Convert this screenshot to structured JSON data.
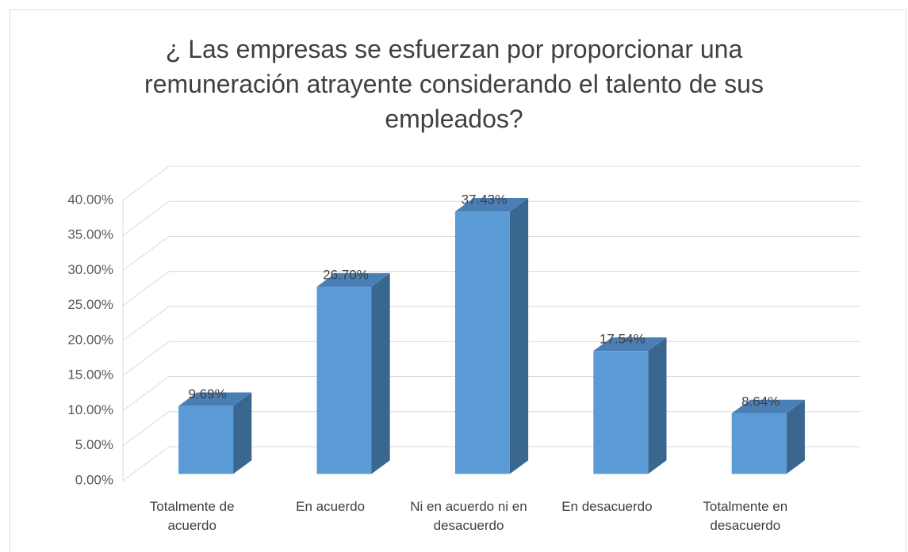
{
  "chart_data": {
    "type": "bar3d",
    "title": "¿ Las empresas se esfuerzan por proporcionar una remuneración atrayente considerando el talento de sus empleados?",
    "categories": [
      "Totalmente de acuerdo",
      "En acuerdo",
      "Ni en acuerdo ni en desacuerdo",
      "En desacuerdo",
      "Totalmente en desacuerdo"
    ],
    "values": [
      9.69,
      26.7,
      37.43,
      17.54,
      8.64
    ],
    "value_labels": [
      "9.69%",
      "26.70%",
      "37.43%",
      "17.54%",
      "8.64%"
    ],
    "color": "#5b9bd5",
    "ylim": [
      0,
      40
    ],
    "yticks": [
      {
        "value": 0,
        "label": "0.00%"
      },
      {
        "value": 5,
        "label": "5.00%"
      },
      {
        "value": 10,
        "label": "10.00%"
      },
      {
        "value": 15,
        "label": "15.00%"
      },
      {
        "value": 20,
        "label": "20.00%"
      },
      {
        "value": 25,
        "label": "25.00%"
      },
      {
        "value": 30,
        "label": "30.00%"
      },
      {
        "value": 35,
        "label": "35.00%"
      },
      {
        "value": 40,
        "label": "40.00%"
      }
    ],
    "grid": true
  }
}
